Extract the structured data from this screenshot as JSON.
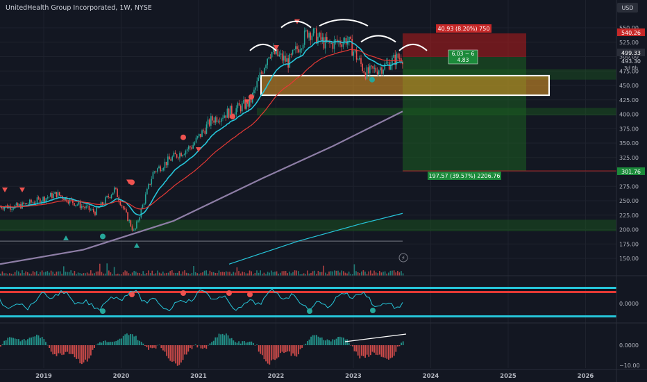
{
  "header": {
    "title": "UnitedHealth Group Incorporated, 1W, NYSE"
  },
  "currency_label": "USD",
  "colors": {
    "background": "#131722",
    "up": "#26a69a",
    "down": "#ef5350",
    "ema_fast": "#26c6da",
    "ema_slow": "#e53935",
    "sma_long": "#8e7ea6",
    "highlight_box": "#ffffff",
    "target_zone": "#1b5e20",
    "stop_zone": "#b71c1c"
  },
  "chart_data": {
    "type": "line",
    "title": "",
    "xlabel": "",
    "ylabel": "",
    "x": [
      "2018-09",
      "2018-12",
      "2019-03",
      "2019-06",
      "2019-09",
      "2019-12",
      "2020-03",
      "2020-06",
      "2020-09",
      "2020-12",
      "2021-03",
      "2021-06",
      "2021-09",
      "2021-12",
      "2022-03",
      "2022-06",
      "2022-09",
      "2022-12",
      "2023-03",
      "2023-06",
      "2023-08"
    ],
    "series": [
      {
        "name": "",
        "values": [
          240,
          250,
          262,
          245,
          230,
          270,
          195,
          300,
          325,
          345,
          390,
          405,
          420,
          510,
          490,
          545,
          520,
          530,
          470,
          485,
          499
        ]
      }
    ],
    "x_ticks": [
      "2019",
      "2020",
      "2021",
      "2022",
      "2023",
      "2024",
      "2025",
      "2026"
    ],
    "y_ticks": [
      "550.00",
      "525.00",
      "500.00",
      "475.00",
      "450.00",
      "425.00",
      "400.00",
      "375.00",
      "350.00",
      "325.00",
      "300.00",
      "275.00",
      "250.00",
      "225.00",
      "200.00",
      "175.00",
      "150.00"
    ],
    "ylim": [
      140,
      575
    ],
    "price_labels": {
      "stop": "540.26",
      "current": "499.33",
      "prev": "493.30",
      "countdown": "3d 6h",
      "target": "301.76"
    },
    "annotations": {
      "risk_box": "40.93 (8.20%) 750",
      "ratio_line1": "6.03 − 6",
      "ratio_line2": "4.83",
      "reward_box": "197.57 (39.57%) 2206.76"
    },
    "zone": {
      "low": 433,
      "high": 467
    },
    "sub_panel_1_ticks": [
      "0.0000"
    ],
    "sub_panel_2_ticks": [
      "0.0000",
      "−10.00"
    ]
  }
}
